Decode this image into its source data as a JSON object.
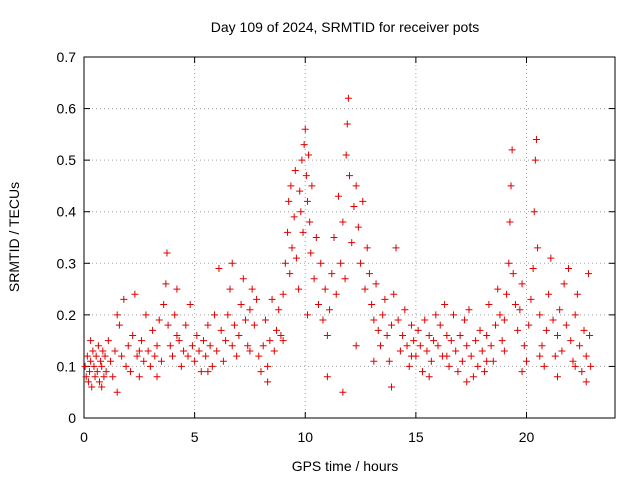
{
  "chart_data": {
    "type": "scatter",
    "title": "Day 109 of 2024, SRMTID for receiver pots",
    "xlabel": "GPS time / hours",
    "ylabel": "SRMTID / TECUs",
    "xlim": [
      0,
      24
    ],
    "ylim": [
      0,
      0.7
    ],
    "xticks": [
      0,
      5,
      10,
      15,
      20
    ],
    "yticks": [
      0,
      0.1,
      0.2,
      0.3,
      0.4,
      0.5,
      0.6,
      0.7
    ],
    "grid": true,
    "marker": "+",
    "color": "#e00000",
    "series": [
      {
        "name": "pots",
        "points": [
          [
            0.05,
            0.1
          ],
          [
            0.1,
            0.08
          ],
          [
            0.15,
            0.12
          ],
          [
            0.2,
            0.07
          ],
          [
            0.25,
            0.09
          ],
          [
            0.3,
            0.11
          ],
          [
            0.35,
            0.06
          ],
          [
            0.4,
            0.13
          ],
          [
            0.45,
            0.1
          ],
          [
            0.5,
            0.08
          ],
          [
            0.55,
            0.12
          ],
          [
            0.6,
            0.09
          ],
          [
            0.65,
            0.14
          ],
          [
            0.7,
            0.07
          ],
          [
            0.75,
            0.11
          ],
          [
            0.8,
            0.1
          ],
          [
            0.85,
            0.13
          ],
          [
            0.9,
            0.08
          ],
          [
            0.95,
            0.12
          ],
          [
            1.0,
            0.09
          ],
          [
            1.1,
            0.15
          ],
          [
            1.2,
            0.11
          ],
          [
            1.3,
            0.08
          ],
          [
            1.4,
            0.13
          ],
          [
            1.5,
            0.2
          ],
          [
            1.6,
            0.18
          ],
          [
            1.7,
            0.12
          ],
          [
            1.8,
            0.23
          ],
          [
            1.9,
            0.1
          ],
          [
            2.0,
            0.14
          ],
          [
            2.1,
            0.09
          ],
          [
            2.2,
            0.16
          ],
          [
            2.3,
            0.24
          ],
          [
            2.4,
            0.12
          ],
          [
            2.5,
            0.08
          ],
          [
            2.6,
            0.15
          ],
          [
            2.7,
            0.11
          ],
          [
            2.8,
            0.2
          ],
          [
            2.9,
            0.13
          ],
          [
            3.0,
            0.1
          ],
          [
            3.1,
            0.17
          ],
          [
            3.2,
            0.12
          ],
          [
            3.3,
            0.14
          ],
          [
            3.4,
            0.19
          ],
          [
            3.5,
            0.11
          ],
          [
            3.6,
            0.22
          ],
          [
            3.7,
            0.26
          ],
          [
            3.75,
            0.32
          ],
          [
            3.8,
            0.18
          ],
          [
            3.9,
            0.14
          ],
          [
            4.0,
            0.12
          ],
          [
            4.1,
            0.2
          ],
          [
            4.2,
            0.25
          ],
          [
            4.3,
            0.15
          ],
          [
            4.4,
            0.1
          ],
          [
            4.5,
            0.13
          ],
          [
            4.6,
            0.18
          ],
          [
            4.7,
            0.12
          ],
          [
            4.8,
            0.22
          ],
          [
            4.9,
            0.14
          ],
          [
            5.0,
            0.11
          ],
          [
            5.1,
            0.16
          ],
          [
            5.2,
            0.13
          ],
          [
            5.3,
            0.09
          ],
          [
            5.4,
            0.15
          ],
          [
            5.5,
            0.12
          ],
          [
            5.6,
            0.18
          ],
          [
            5.7,
            0.14
          ],
          [
            5.8,
            0.1
          ],
          [
            5.9,
            0.2
          ],
          [
            6.0,
            0.13
          ],
          [
            6.1,
            0.29
          ],
          [
            6.2,
            0.17
          ],
          [
            6.3,
            0.11
          ],
          [
            6.4,
            0.15
          ],
          [
            6.5,
            0.2
          ],
          [
            6.6,
            0.25
          ],
          [
            6.7,
            0.3
          ],
          [
            6.8,
            0.18
          ],
          [
            6.9,
            0.12
          ],
          [
            7.0,
            0.16
          ],
          [
            7.1,
            0.22
          ],
          [
            7.2,
            0.27
          ],
          [
            7.3,
            0.19
          ],
          [
            7.4,
            0.14
          ],
          [
            7.5,
            0.21
          ],
          [
            7.6,
            0.25
          ],
          [
            7.7,
            0.18
          ],
          [
            7.8,
            0.23
          ],
          [
            7.9,
            0.12
          ],
          [
            8.0,
            0.09
          ],
          [
            8.1,
            0.14
          ],
          [
            8.2,
            0.19
          ],
          [
            8.3,
            0.1
          ],
          [
            8.4,
            0.15
          ],
          [
            8.5,
            0.23
          ],
          [
            8.6,
            0.13
          ],
          [
            8.7,
            0.17
          ],
          [
            8.8,
            0.21
          ],
          [
            8.9,
            0.16
          ],
          [
            9.0,
            0.24
          ],
          [
            9.1,
            0.3
          ],
          [
            9.2,
            0.36
          ],
          [
            9.25,
            0.42
          ],
          [
            9.3,
            0.28
          ],
          [
            9.35,
            0.45
          ],
          [
            9.4,
            0.33
          ],
          [
            9.5,
            0.39
          ],
          [
            9.55,
            0.48
          ],
          [
            9.6,
            0.31
          ],
          [
            9.7,
            0.25
          ],
          [
            9.75,
            0.44
          ],
          [
            9.8,
            0.4
          ],
          [
            9.85,
            0.5
          ],
          [
            9.9,
            0.36
          ],
          [
            9.95,
            0.53
          ],
          [
            10.0,
            0.56
          ],
          [
            10.05,
            0.47
          ],
          [
            10.1,
            0.42
          ],
          [
            10.15,
            0.51
          ],
          [
            10.2,
            0.38
          ],
          [
            10.25,
            0.32
          ],
          [
            10.3,
            0.45
          ],
          [
            10.4,
            0.27
          ],
          [
            10.5,
            0.35
          ],
          [
            10.6,
            0.22
          ],
          [
            10.7,
            0.3
          ],
          [
            10.8,
            0.19
          ],
          [
            10.9,
            0.25
          ],
          [
            11.0,
            0.16
          ],
          [
            11.1,
            0.21
          ],
          [
            11.2,
            0.28
          ],
          [
            11.3,
            0.35
          ],
          [
            11.4,
            0.24
          ],
          [
            11.5,
            0.43
          ],
          [
            11.6,
            0.3
          ],
          [
            11.7,
            0.38
          ],
          [
            11.8,
            0.27
          ],
          [
            11.85,
            0.51
          ],
          [
            11.9,
            0.57
          ],
          [
            11.95,
            0.62
          ],
          [
            12.0,
            0.47
          ],
          [
            12.1,
            0.34
          ],
          [
            12.2,
            0.41
          ],
          [
            12.3,
            0.45
          ],
          [
            12.4,
            0.37
          ],
          [
            12.5,
            0.3
          ],
          [
            12.6,
            0.42
          ],
          [
            12.7,
            0.25
          ],
          [
            12.8,
            0.33
          ],
          [
            12.9,
            0.28
          ],
          [
            13.0,
            0.22
          ],
          [
            13.1,
            0.19
          ],
          [
            13.2,
            0.26
          ],
          [
            13.3,
            0.17
          ],
          [
            13.4,
            0.14
          ],
          [
            13.5,
            0.2
          ],
          [
            13.6,
            0.23
          ],
          [
            13.7,
            0.16
          ],
          [
            13.8,
            0.11
          ],
          [
            13.9,
            0.18
          ],
          [
            14.0,
            0.24
          ],
          [
            14.1,
            0.33
          ],
          [
            14.2,
            0.19
          ],
          [
            14.3,
            0.13
          ],
          [
            14.4,
            0.16
          ],
          [
            14.5,
            0.21
          ],
          [
            14.6,
            0.14
          ],
          [
            14.7,
            0.1
          ],
          [
            14.8,
            0.18
          ],
          [
            14.9,
            0.15
          ],
          [
            15.0,
            0.12
          ],
          [
            15.1,
            0.17
          ],
          [
            15.2,
            0.14
          ],
          [
            15.3,
            0.09
          ],
          [
            15.4,
            0.19
          ],
          [
            15.5,
            0.13
          ],
          [
            15.6,
            0.16
          ],
          [
            15.7,
            0.11
          ],
          [
            15.8,
            0.15
          ],
          [
            15.9,
            0.2
          ],
          [
            16.0,
            0.14
          ],
          [
            16.1,
            0.18
          ],
          [
            16.2,
            0.12
          ],
          [
            16.3,
            0.22
          ],
          [
            16.4,
            0.16
          ],
          [
            16.5,
            0.1
          ],
          [
            16.6,
            0.15
          ],
          [
            16.7,
            0.2
          ],
          [
            16.8,
            0.13
          ],
          [
            16.9,
            0.09
          ],
          [
            17.0,
            0.16
          ],
          [
            17.1,
            0.11
          ],
          [
            17.2,
            0.19
          ],
          [
            17.3,
            0.14
          ],
          [
            17.4,
            0.21
          ],
          [
            17.5,
            0.12
          ],
          [
            17.6,
            0.08
          ],
          [
            17.7,
            0.15
          ],
          [
            17.8,
            0.1
          ],
          [
            17.9,
            0.17
          ],
          [
            18.0,
            0.13
          ],
          [
            18.1,
            0.09
          ],
          [
            18.2,
            0.16
          ],
          [
            18.3,
            0.22
          ],
          [
            18.4,
            0.14
          ],
          [
            18.5,
            0.11
          ],
          [
            18.6,
            0.18
          ],
          [
            18.7,
            0.25
          ],
          [
            18.8,
            0.2
          ],
          [
            18.9,
            0.15
          ],
          [
            19.0,
            0.19
          ],
          [
            19.1,
            0.24
          ],
          [
            19.2,
            0.3
          ],
          [
            19.25,
            0.38
          ],
          [
            19.3,
            0.45
          ],
          [
            19.35,
            0.52
          ],
          [
            19.4,
            0.28
          ],
          [
            19.5,
            0.22
          ],
          [
            19.6,
            0.17
          ],
          [
            19.7,
            0.21
          ],
          [
            19.8,
            0.26
          ],
          [
            19.9,
            0.14
          ],
          [
            20.0,
            0.11
          ],
          [
            20.1,
            0.18
          ],
          [
            20.2,
            0.23
          ],
          [
            20.3,
            0.29
          ],
          [
            20.35,
            0.4
          ],
          [
            20.4,
            0.5
          ],
          [
            20.45,
            0.54
          ],
          [
            20.5,
            0.33
          ],
          [
            20.6,
            0.2
          ],
          [
            20.7,
            0.14
          ],
          [
            20.8,
            0.1
          ],
          [
            20.9,
            0.17
          ],
          [
            21.0,
            0.24
          ],
          [
            21.1,
            0.31
          ],
          [
            21.2,
            0.19
          ],
          [
            21.3,
            0.12
          ],
          [
            21.4,
            0.16
          ],
          [
            21.5,
            0.21
          ],
          [
            21.6,
            0.13
          ],
          [
            21.7,
            0.26
          ],
          [
            21.8,
            0.18
          ],
          [
            21.9,
            0.29
          ],
          [
            22.0,
            0.15
          ],
          [
            22.1,
            0.11
          ],
          [
            22.2,
            0.2
          ],
          [
            22.3,
            0.24
          ],
          [
            22.4,
            0.14
          ],
          [
            22.5,
            0.09
          ],
          [
            22.6,
            0.17
          ],
          [
            22.7,
            0.12
          ],
          [
            22.8,
            0.28
          ],
          [
            22.85,
            0.16
          ],
          [
            22.9,
            0.1
          ],
          [
            0.3,
            0.15
          ],
          [
            0.8,
            0.06
          ],
          [
            1.5,
            0.05
          ],
          [
            2.5,
            0.13
          ],
          [
            3.3,
            0.08
          ],
          [
            4.2,
            0.16
          ],
          [
            5.6,
            0.09
          ],
          [
            6.7,
            0.14
          ],
          [
            7.5,
            0.13
          ],
          [
            8.3,
            0.07
          ],
          [
            9.0,
            0.15
          ],
          [
            10.1,
            0.2
          ],
          [
            11.0,
            0.08
          ],
          [
            11.7,
            0.05
          ],
          [
            12.3,
            0.14
          ],
          [
            13.1,
            0.11
          ],
          [
            13.9,
            0.06
          ],
          [
            14.8,
            0.12
          ],
          [
            15.6,
            0.08
          ],
          [
            16.4,
            0.12
          ],
          [
            17.3,
            0.07
          ],
          [
            18.2,
            0.11
          ],
          [
            19.0,
            0.13
          ],
          [
            19.8,
            0.09
          ],
          [
            20.6,
            0.12
          ],
          [
            21.4,
            0.08
          ],
          [
            22.2,
            0.1
          ],
          [
            22.7,
            0.07
          ]
        ]
      }
    ]
  }
}
